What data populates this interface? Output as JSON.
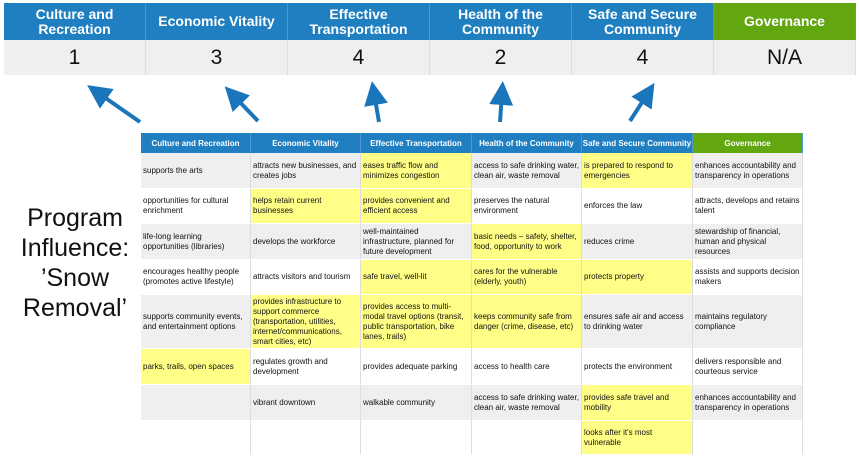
{
  "categories": [
    "Culture and Recreation",
    "Economic Vitality",
    "Effective Transportation",
    "Health of the Community",
    "Safe and Secure Community",
    "Governance"
  ],
  "scores": [
    "1",
    "3",
    "4",
    "2",
    "4",
    "N/A"
  ],
  "side_label": [
    "Program",
    "Influence:",
    "’Snow",
    "Removal’"
  ],
  "colors": {
    "header_blue": "#1f7fc1",
    "governance_green": "#62a70f",
    "highlight_yellow": "#ffff88",
    "row_gray": "#efefef",
    "arrow": "#1a75bb"
  },
  "rows": [
    [
      {
        "t": "supports the arts",
        "h": false
      },
      {
        "t": "attracts new businesses, and creates jobs",
        "h": false
      },
      {
        "t": "eases traffic flow and minimizes congestion",
        "h": true
      },
      {
        "t": "access to safe drinking water, clean air, waste removal",
        "h": false
      },
      {
        "t": "is prepared to respond to emergencies",
        "h": true
      },
      {
        "t": "enhances accountability and transparency in operations",
        "h": false
      }
    ],
    [
      {
        "t": "opportunities for cultural enrichment",
        "h": false
      },
      {
        "t": "helps retain current businesses",
        "h": true
      },
      {
        "t": "provides convenient and efficient access",
        "h": true
      },
      {
        "t": "preserves the natural environment",
        "h": false
      },
      {
        "t": "enforces the law",
        "h": false
      },
      {
        "t": "attracts, develops and retains talent",
        "h": false
      }
    ],
    [
      {
        "t": "life-long learning opportunities (libraries)",
        "h": false
      },
      {
        "t": "develops the workforce",
        "h": false
      },
      {
        "t": "well-maintained infrastructure, planned for future development",
        "h": false
      },
      {
        "t": "basic needs – safety, shelter, food, opportunity to work",
        "h": true
      },
      {
        "t": "reduces crime",
        "h": false
      },
      {
        "t": "stewardship of financial, human and physical resources",
        "h": false
      }
    ],
    [
      {
        "t": "encourages healthy people (promotes active lifestyle)",
        "h": false
      },
      {
        "t": "attracts visitors and tourism",
        "h": false
      },
      {
        "t": "safe travel, well-lit",
        "h": true
      },
      {
        "t": "cares for the vulnerable (elderly, youth)",
        "h": true
      },
      {
        "t": "protects property",
        "h": true
      },
      {
        "t": "assists and supports decision makers",
        "h": false
      }
    ],
    [
      {
        "t": "supports community events, and entertainment options",
        "h": false
      },
      {
        "t": "provides infrastructure to support commerce (transportation, utilities, internet/communications, smart cities, etc)",
        "h": true
      },
      {
        "t": "provides access to multi-modal travel options (transit, public transportation, bike lanes, trails)",
        "h": true
      },
      {
        "t": "keeps community safe from danger (crime, disease, etc)",
        "h": true
      },
      {
        "t": "ensures safe air and access to drinking water",
        "h": false
      },
      {
        "t": "maintains regulatory compliance",
        "h": false
      }
    ],
    [
      {
        "t": "parks, trails, open spaces",
        "h": true
      },
      {
        "t": "regulates growth and development",
        "h": false
      },
      {
        "t": "provides adequate parking",
        "h": false
      },
      {
        "t": "access to health care",
        "h": false
      },
      {
        "t": "protects the environment",
        "h": false
      },
      {
        "t": "delivers responsible and courteous service",
        "h": false
      }
    ],
    [
      {
        "t": "",
        "h": false
      },
      {
        "t": "vibrant downtown",
        "h": false
      },
      {
        "t": "walkable community",
        "h": false
      },
      {
        "t": "access to safe drinking water, clean air, waste removal",
        "h": false
      },
      {
        "t": "provides safe travel and mobility",
        "h": true
      },
      {
        "t": "enhances accountability and transparency in operations",
        "h": false
      }
    ],
    [
      {
        "t": "",
        "h": false
      },
      {
        "t": "",
        "h": false
      },
      {
        "t": "",
        "h": false
      },
      {
        "t": "",
        "h": false
      },
      {
        "t": "looks after it's most vulnerable",
        "h": true
      },
      {
        "t": "",
        "h": false
      }
    ]
  ]
}
